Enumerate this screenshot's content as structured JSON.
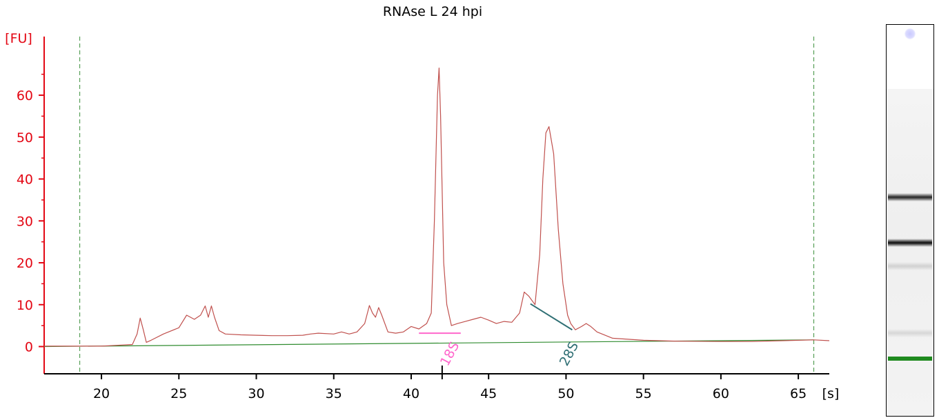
{
  "chart_data": {
    "type": "line",
    "title": "RNAse L 24 hpi",
    "ylabel": "[FU]",
    "xlabel": "[s]",
    "xlim": [
      16.3,
      67
    ],
    "ylim": [
      -6.5,
      74
    ],
    "yticks": [
      0,
      10,
      20,
      30,
      40,
      50,
      60
    ],
    "ytick_labels": [
      "0",
      "10",
      "20",
      "30",
      "40",
      "50",
      "60"
    ],
    "xticks": [
      20,
      25,
      30,
      35,
      40,
      45,
      50,
      55,
      60,
      65
    ],
    "xtick_labels": [
      "20",
      "25",
      "30",
      "35",
      "40",
      "45",
      "50",
      "55",
      "60",
      "65"
    ],
    "minor_xticks": [
      42
    ],
    "marker_lines_x": [
      18.6,
      66
    ],
    "grid": false,
    "colors": {
      "axis": "#e30613",
      "trace": "#c0504d",
      "baseline": "#2e8b2e",
      "marker_lines": "#3a8f3a",
      "peak_18S": "#ff66cc",
      "peak_28S": "#2f6f74",
      "gel_marker_band": "#1f8a1f"
    },
    "series": [
      {
        "name": "",
        "x": [
          16.3,
          20.0,
          21.0,
          22.0,
          22.3,
          22.5,
          22.7,
          22.9,
          23.2,
          24.0,
          25.0,
          25.5,
          26.0,
          26.4,
          26.7,
          26.9,
          27.1,
          27.3,
          27.6,
          28.0,
          29.0,
          30.0,
          31.0,
          32.0,
          33.0,
          33.5,
          34.0,
          35.0,
          35.5,
          36.0,
          36.5,
          37.0,
          37.3,
          37.5,
          37.7,
          37.9,
          38.1,
          38.5,
          39.0,
          39.5,
          40.0,
          40.5,
          41.0,
          41.3,
          41.5,
          41.7,
          41.8,
          41.9,
          42.1,
          42.3,
          42.6,
          43.0,
          43.5,
          44.0,
          44.5,
          45.0,
          45.5,
          46.0,
          46.5,
          47.0,
          47.3,
          47.6,
          48.0,
          48.3,
          48.5,
          48.7,
          48.9,
          49.2,
          49.5,
          49.8,
          50.1,
          50.3,
          50.6,
          51.0,
          51.3,
          51.6,
          52.0,
          53.0,
          55.0,
          57.0,
          60.0,
          62.0,
          64.0,
          66.0,
          67.0
        ],
        "y": [
          0.1,
          0.1,
          0.3,
          0.5,
          3.0,
          6.8,
          4.0,
          1.0,
          1.5,
          3.0,
          4.5,
          7.5,
          6.5,
          7.5,
          9.7,
          7.0,
          9.7,
          7.0,
          3.8,
          3.0,
          2.8,
          2.7,
          2.6,
          2.6,
          2.7,
          3.0,
          3.2,
          3.0,
          3.5,
          3.0,
          3.5,
          5.5,
          9.8,
          8.0,
          7.0,
          9.3,
          7.5,
          3.5,
          3.2,
          3.5,
          4.8,
          4.2,
          5.5,
          8.0,
          30.0,
          60.0,
          66.5,
          55.0,
          20.0,
          10.0,
          5.0,
          5.5,
          6.0,
          6.5,
          7.0,
          6.3,
          5.5,
          6.0,
          5.8,
          8.0,
          13.0,
          12.0,
          10.0,
          22.0,
          40.0,
          51.0,
          52.5,
          46.0,
          28.0,
          15.0,
          7.5,
          5.5,
          4.0,
          4.8,
          5.5,
          4.8,
          3.5,
          2.0,
          1.5,
          1.3,
          1.2,
          1.2,
          1.4,
          1.6,
          1.4
        ]
      }
    ],
    "baseline": {
      "x": [
        16.3,
        66
      ],
      "y": [
        0,
        1.6
      ]
    },
    "annotations": [
      {
        "label": "18S",
        "x": 42.0,
        "segment_x": [
          40.5,
          43.2
        ],
        "segment_y": [
          3.2,
          3.2
        ]
      },
      {
        "label": "28S",
        "x": 49.7,
        "segment_x": [
          47.7,
          50.4
        ],
        "segment_y": [
          10.2,
          4.0
        ]
      }
    ],
    "gel_bands_fraction": [
      {
        "pos": 0.44,
        "intensity": 0.85
      },
      {
        "pos": 0.555,
        "intensity": 0.95
      },
      {
        "pos": 0.615,
        "intensity": 0.15
      },
      {
        "pos": 0.785,
        "intensity": 0.12
      }
    ]
  }
}
